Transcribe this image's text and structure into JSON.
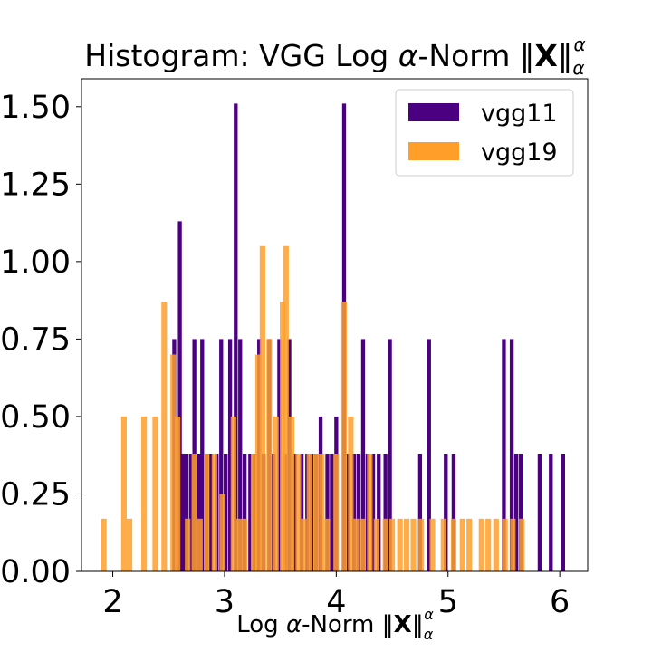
{
  "chart_data": {
    "type": "histogram",
    "title": "Histogram: VGG Log α-Norm ‖X‖αα",
    "title_main": "Histogram: VGG Log ",
    "xlabel": "Log α-Norm ‖X‖αα",
    "xlabel_main": "Log ",
    "alpha_symbol": "α",
    "norm_word": "-Norm ",
    "norm_bar": "‖",
    "bold_symbol": "X",
    "ylabel": "",
    "xlim": [
      1.72,
      6.25
    ],
    "ylim": [
      0,
      1.59
    ],
    "x_ticks": [
      "2",
      "3",
      "4",
      "5",
      "6"
    ],
    "x_tick_values": [
      2,
      3,
      4,
      5,
      6
    ],
    "y_ticks": [
      "0.00",
      "0.25",
      "0.50",
      "0.75",
      "1.00",
      "1.25",
      "1.50"
    ],
    "y_tick_values": [
      0,
      0.25,
      0.5,
      0.75,
      1.0,
      1.25,
      1.5
    ],
    "legend_position": "upper right",
    "grid": false,
    "series": [
      {
        "name": "vgg11",
        "color": "#4b0082",
        "bin_width": 0.035,
        "bins": [
          [
            2.55,
            0.75
          ],
          [
            2.6,
            1.13
          ],
          [
            2.63,
            0.38
          ],
          [
            2.66,
            0.38
          ],
          [
            2.7,
            0.38
          ],
          [
            2.73,
            0.75
          ],
          [
            2.77,
            0.38
          ],
          [
            2.8,
            0.75
          ],
          [
            2.84,
            0.38
          ],
          [
            2.88,
            0.38
          ],
          [
            2.93,
            0.38
          ],
          [
            2.97,
            0.75
          ],
          [
            3.01,
            0.38
          ],
          [
            3.05,
            0.75
          ],
          [
            3.1,
            1.51
          ],
          [
            3.14,
            0.75
          ],
          [
            3.18,
            0.38
          ],
          [
            3.23,
            0.38
          ],
          [
            3.27,
            0.38
          ],
          [
            3.31,
            0.75
          ],
          [
            3.35,
            0.38
          ],
          [
            3.4,
            0.75
          ],
          [
            3.44,
            0.38
          ],
          [
            3.49,
            0.75
          ],
          [
            3.54,
            0.38
          ],
          [
            3.58,
            0.75
          ],
          [
            3.63,
            0.38
          ],
          [
            3.69,
            0.38
          ],
          [
            3.74,
            0.38
          ],
          [
            3.78,
            0.38
          ],
          [
            3.82,
            0.38
          ],
          [
            3.86,
            0.5
          ],
          [
            3.92,
            0.38
          ],
          [
            3.96,
            0.38
          ],
          [
            4.0,
            0.5
          ],
          [
            4.07,
            1.51
          ],
          [
            4.11,
            0.38
          ],
          [
            4.16,
            0.38
          ],
          [
            4.2,
            0.38
          ],
          [
            4.24,
            0.75
          ],
          [
            4.28,
            0.38
          ],
          [
            4.33,
            0.38
          ],
          [
            4.38,
            0.38
          ],
          [
            4.44,
            0.38
          ],
          [
            4.48,
            0.75
          ],
          [
            4.75,
            0.38
          ],
          [
            4.83,
            0.75
          ],
          [
            4.98,
            0.38
          ],
          [
            5.05,
            0.38
          ],
          [
            5.5,
            0.75
          ],
          [
            5.57,
            0.75
          ],
          [
            5.61,
            0.38
          ],
          [
            5.65,
            0.38
          ],
          [
            5.82,
            0.38
          ],
          [
            5.92,
            0.38
          ],
          [
            6.03,
            0.38
          ]
        ]
      },
      {
        "name": "vgg19",
        "color": "#ff9f2a",
        "bin_width": 0.05,
        "bins": [
          [
            1.92,
            0.17
          ],
          [
            2.1,
            0.5
          ],
          [
            2.15,
            0.17
          ],
          [
            2.28,
            0.5
          ],
          [
            2.38,
            0.5
          ],
          [
            2.46,
            0.87
          ],
          [
            2.54,
            0.7
          ],
          [
            2.58,
            0.5
          ],
          [
            2.67,
            0.17
          ],
          [
            2.73,
            0.38
          ],
          [
            2.78,
            0.17
          ],
          [
            2.84,
            0.38
          ],
          [
            2.91,
            0.38
          ],
          [
            2.98,
            0.25
          ],
          [
            3.08,
            0.5
          ],
          [
            3.13,
            0.17
          ],
          [
            3.18,
            0.17
          ],
          [
            3.26,
            0.38
          ],
          [
            3.3,
            0.7
          ],
          [
            3.34,
            1.05
          ],
          [
            3.4,
            0.75
          ],
          [
            3.46,
            0.5
          ],
          [
            3.52,
            0.87
          ],
          [
            3.55,
            1.05
          ],
          [
            3.6,
            0.5
          ],
          [
            3.66,
            0.38
          ],
          [
            3.71,
            0.17
          ],
          [
            3.76,
            0.38
          ],
          [
            3.82,
            0.38
          ],
          [
            3.87,
            0.38
          ],
          [
            3.92,
            0.17
          ],
          [
            4.0,
            0.38
          ],
          [
            4.07,
            0.87
          ],
          [
            4.13,
            0.5
          ],
          [
            4.18,
            0.17
          ],
          [
            4.24,
            0.17
          ],
          [
            4.3,
            0.38
          ],
          [
            4.36,
            0.17
          ],
          [
            4.44,
            0.17
          ],
          [
            4.5,
            0.17
          ],
          [
            4.57,
            0.17
          ],
          [
            4.63,
            0.17
          ],
          [
            4.69,
            0.17
          ],
          [
            4.76,
            0.17
          ],
          [
            4.86,
            0.17
          ],
          [
            4.96,
            0.17
          ],
          [
            5.05,
            0.17
          ],
          [
            5.13,
            0.17
          ],
          [
            5.19,
            0.17
          ],
          [
            5.3,
            0.17
          ],
          [
            5.36,
            0.17
          ],
          [
            5.43,
            0.17
          ],
          [
            5.51,
            0.17
          ],
          [
            5.58,
            0.17
          ],
          [
            5.66,
            0.17
          ]
        ]
      }
    ]
  }
}
